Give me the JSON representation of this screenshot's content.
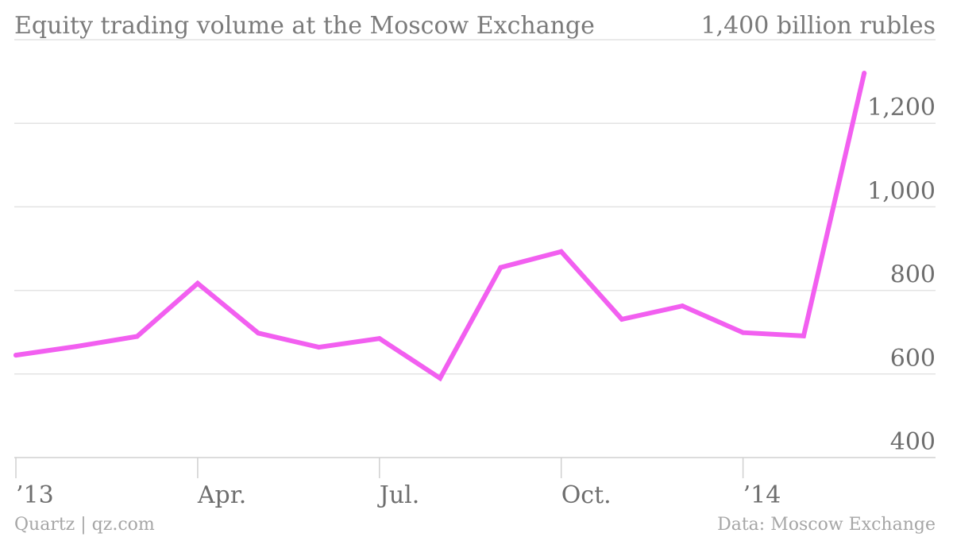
{
  "chart_data": {
    "type": "line",
    "title": "Equity trading volume at the Moscow Exchange",
    "unit_label": "1,400 billion rubles",
    "x": [
      "2013-01",
      "2013-02",
      "2013-03",
      "2013-04",
      "2013-05",
      "2013-06",
      "2013-07",
      "2013-08",
      "2013-09",
      "2013-10",
      "2013-11",
      "2013-12",
      "2014-01",
      "2014-02",
      "2014-03"
    ],
    "series": [
      {
        "values": [
          645,
          666,
          690,
          817,
          698,
          664,
          685,
          590,
          855,
          893,
          731,
          763,
          699,
          691,
          1320
        ]
      }
    ],
    "ylim": [
      400,
      1400
    ],
    "yticks": [
      400,
      600,
      800,
      1000,
      1200
    ],
    "ytick_labels": [
      "400",
      "600",
      "800",
      "1,000",
      "1,200"
    ],
    "xtick_positions": [
      0,
      3,
      6,
      9,
      12
    ],
    "xtick_labels": [
      "’13",
      "Apr.",
      "Jul.",
      "Oct.",
      "’14"
    ],
    "grid": true,
    "line_color": "#f25ff0",
    "source_left": "Quartz | qz.com",
    "source_right": "Data: Moscow Exchange"
  }
}
